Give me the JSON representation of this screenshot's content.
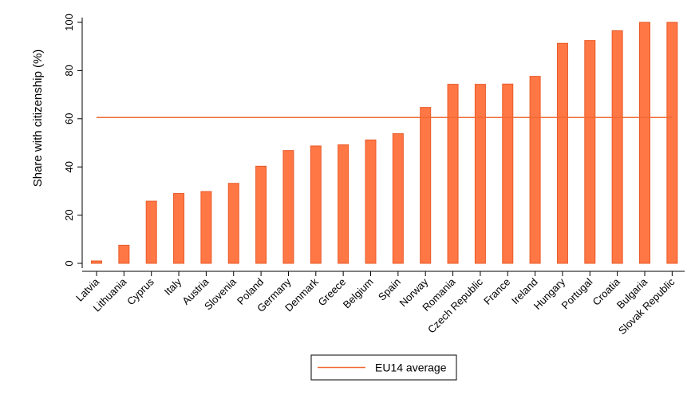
{
  "chart_data": {
    "type": "bar",
    "ylabel": "Share with citizenship (%)",
    "xlabel": "",
    "ylim": [
      0,
      100
    ],
    "yticks": [
      0,
      20,
      40,
      60,
      80,
      100
    ],
    "grid": false,
    "bar_color": "#ff7745",
    "bar_edge_color": "#e85a28",
    "reference_line": {
      "name": "EU14 average",
      "value": 60.5,
      "color": "#f26a33"
    },
    "legend_position": "bottom-center",
    "categories": [
      "Latvia",
      "Lithuania",
      "Cyprus",
      "Italy",
      "Austria",
      "Slovenia",
      "Poland",
      "Germany",
      "Denmark",
      "Greece",
      "Belgium",
      "Spain",
      "Norway",
      "Romania",
      "Czech Republic",
      "France",
      "Ireland",
      "Hungary",
      "Portugal",
      "Croatia",
      "Bulgaria",
      "Slovak Republic"
    ],
    "values": [
      1,
      7.5,
      25.8,
      29,
      29.8,
      33.2,
      40.3,
      46.8,
      48.7,
      49.2,
      51.2,
      53.8,
      64.7,
      74.3,
      74.3,
      74.4,
      77.6,
      91.3,
      92.5,
      96.5,
      100,
      100
    ]
  }
}
